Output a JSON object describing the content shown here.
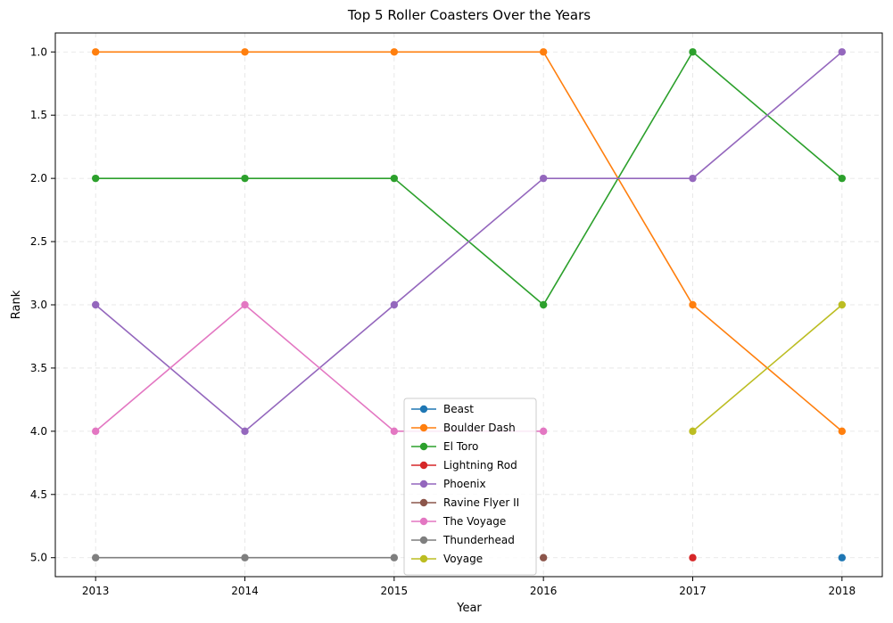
{
  "chart_data": {
    "type": "line",
    "title": "Top 5 Roller Coasters Over the Years",
    "xlabel": "Year",
    "ylabel": "Rank",
    "x": [
      2013,
      2014,
      2015,
      2016,
      2017,
      2018
    ],
    "x_tick_labels": [
      "2013",
      "2014",
      "2015",
      "2016",
      "2017",
      "2018"
    ],
    "y_ticks": [
      1.0,
      1.5,
      2.0,
      2.5,
      3.0,
      3.5,
      4.0,
      4.5,
      5.0
    ],
    "y_tick_labels": [
      "1.0",
      "1.5",
      "2.0",
      "2.5",
      "3.0",
      "3.5",
      "4.0",
      "4.5",
      "5.0"
    ],
    "ylim": [
      5.15,
      0.85
    ],
    "y_inverted": true,
    "xlim": [
      2012.73,
      2018.27
    ],
    "grid": true,
    "legend_position": "lower center",
    "series": [
      {
        "name": "Beast",
        "color": "#1f77b4",
        "values": [
          null,
          null,
          null,
          null,
          null,
          5
        ]
      },
      {
        "name": "Boulder Dash",
        "color": "#ff7f0e",
        "values": [
          1,
          1,
          1,
          1,
          3,
          4
        ]
      },
      {
        "name": "El Toro",
        "color": "#2ca02c",
        "values": [
          2,
          2,
          2,
          3,
          1,
          2
        ]
      },
      {
        "name": "Lightning Rod",
        "color": "#d62728",
        "values": [
          null,
          null,
          null,
          null,
          5,
          null
        ]
      },
      {
        "name": "Phoenix",
        "color": "#9467bd",
        "values": [
          3,
          4,
          3,
          2,
          2,
          1
        ]
      },
      {
        "name": "Ravine Flyer II",
        "color": "#8c564b",
        "values": [
          null,
          null,
          null,
          5,
          null,
          null
        ]
      },
      {
        "name": "The Voyage",
        "color": "#e377c2",
        "values": [
          4,
          3,
          4,
          4,
          null,
          null
        ]
      },
      {
        "name": "Thunderhead",
        "color": "#7f7f7f",
        "values": [
          5,
          5,
          5,
          null,
          null,
          null
        ]
      },
      {
        "name": "Voyage",
        "color": "#bcbd22",
        "values": [
          null,
          null,
          null,
          null,
          4,
          3
        ]
      }
    ]
  }
}
